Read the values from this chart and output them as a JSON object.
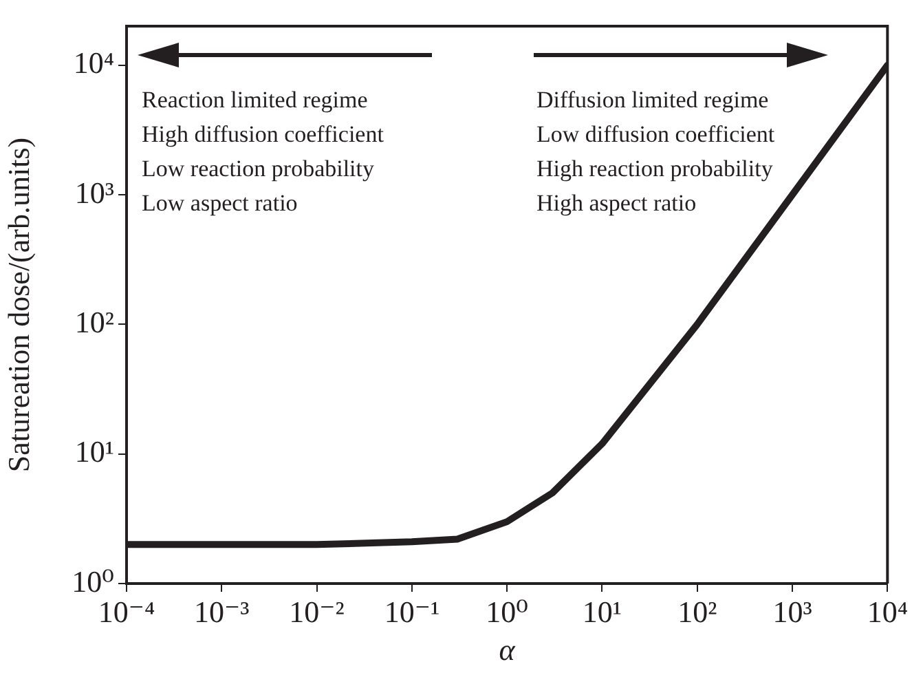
{
  "chart_data": {
    "type": "line",
    "xlabel": "α",
    "ylabel": "Satureation dose/(arb.units)",
    "log": "xy",
    "grid": false,
    "legend": false,
    "marker": "none",
    "line_style": "solid",
    "xlim": [
      0.0001,
      10000
    ],
    "ylim": [
      1,
      20000
    ],
    "xticks": [
      {
        "value": 0.0001,
        "label": "10⁻⁴"
      },
      {
        "value": 0.001,
        "label": "10⁻³"
      },
      {
        "value": 0.01,
        "label": "10⁻²"
      },
      {
        "value": 0.1,
        "label": "10⁻¹"
      },
      {
        "value": 1,
        "label": "10⁰"
      },
      {
        "value": 10,
        "label": "10¹"
      },
      {
        "value": 100,
        "label": "10²"
      },
      {
        "value": 1000,
        "label": "10³"
      },
      {
        "value": 10000,
        "label": "10⁴"
      }
    ],
    "yticks": [
      {
        "value": 1,
        "label": "10⁰"
      },
      {
        "value": 10,
        "label": "10¹"
      },
      {
        "value": 100,
        "label": "10²"
      },
      {
        "value": 1000,
        "label": "10³"
      },
      {
        "value": 10000,
        "label": "10⁴"
      }
    ],
    "series": [
      {
        "color": "#231f20",
        "x": [
          0.0001,
          0.01,
          0.1,
          0.3,
          1,
          3,
          10,
          100,
          1000,
          10000
        ],
        "values": [
          2,
          2,
          2.1,
          2.2,
          3,
          5,
          12,
          100,
          1000,
          10000
        ]
      }
    ],
    "annotations": [
      "Reaction limited regime",
      "High diffusion coefficient",
      "Low reaction probability",
      "Low aspect ratio",
      "Diffusion limited regime",
      "Low diffusion coefficient",
      "High reaction probability",
      "High aspect ratio"
    ]
  }
}
